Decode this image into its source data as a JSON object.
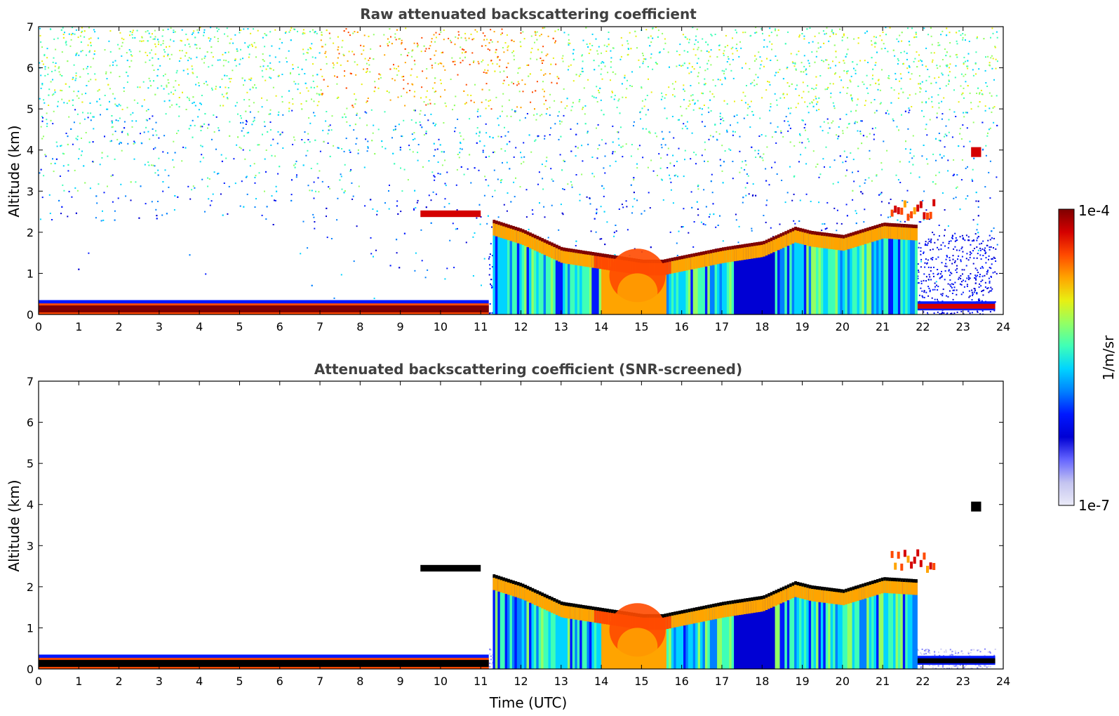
{
  "chart_data": [
    {
      "type": "heatmap",
      "title": "Raw attenuated backscattering coefficient",
      "xlabel": "",
      "ylabel": "Altitude (km)",
      "xlim": [
        0,
        24
      ],
      "ylim": [
        0,
        7
      ],
      "x_ticks": [
        "0",
        "1",
        "2",
        "3",
        "4",
        "5",
        "6",
        "7",
        "8",
        "9",
        "10",
        "11",
        "12",
        "13",
        "14",
        "15",
        "16",
        "17",
        "18",
        "19",
        "20",
        "21",
        "22",
        "23",
        "24"
      ],
      "y_ticks": [
        "0",
        "1",
        "2",
        "3",
        "4",
        "5",
        "6",
        "7"
      ],
      "screened": false,
      "features": {
        "surface_layer": {
          "start_h": 0,
          "end_h": 11.2,
          "top_km": 0.35,
          "late_start_h": 20.5,
          "late_end_h": 23.8
        },
        "boundary_layer_top_km": [
          [
            11.2,
            2.3
          ],
          [
            12,
            2.05
          ],
          [
            13,
            1.6
          ],
          [
            14,
            1.45
          ],
          [
            15,
            1.3
          ],
          [
            15.5,
            1.3
          ],
          [
            16,
            1.4
          ],
          [
            17,
            1.6
          ],
          [
            18,
            1.75
          ],
          [
            18.8,
            2.1
          ],
          [
            19.2,
            2.0
          ],
          [
            20,
            1.9
          ],
          [
            21,
            2.2
          ],
          [
            21.8,
            2.15
          ]
        ],
        "residual_layer": {
          "start_h": 9.5,
          "end_h": 11.0,
          "altitude_km": 2.45
        },
        "elevated_aerosol": {
          "start_h": 21.2,
          "end_h": 22.3,
          "altitude_km": 2.7
        },
        "cloud": {
          "time_h": 23.3,
          "altitude_km": 3.95
        },
        "noise_high_km": 7
      }
    },
    {
      "type": "heatmap",
      "title": "Attenuated backscattering coefficient (SNR-screened)",
      "xlabel": "Time (UTC)",
      "ylabel": "Altitude (km)",
      "xlim": [
        0,
        24
      ],
      "ylim": [
        0,
        7
      ],
      "x_ticks": [
        "0",
        "1",
        "2",
        "3",
        "4",
        "5",
        "6",
        "7",
        "8",
        "9",
        "10",
        "11",
        "12",
        "13",
        "14",
        "15",
        "16",
        "17",
        "18",
        "19",
        "20",
        "21",
        "22",
        "23",
        "24"
      ],
      "y_ticks": [
        "0",
        "1",
        "2",
        "3",
        "4",
        "5",
        "6",
        "7"
      ],
      "screened": true
    }
  ],
  "colorbar": {
    "label": "1/m/sr",
    "max_label": "1e-4",
    "min_label": "1e-7",
    "colors": [
      "#7f0000",
      "#d40000",
      "#ff4a00",
      "#ffa400",
      "#e8ef12",
      "#93ff64",
      "#3fffb7",
      "#00d4ff",
      "#0080ff",
      "#0018ff",
      "#0000d4",
      "#6666ff",
      "#c4c4f0",
      "#ebebf8"
    ]
  }
}
